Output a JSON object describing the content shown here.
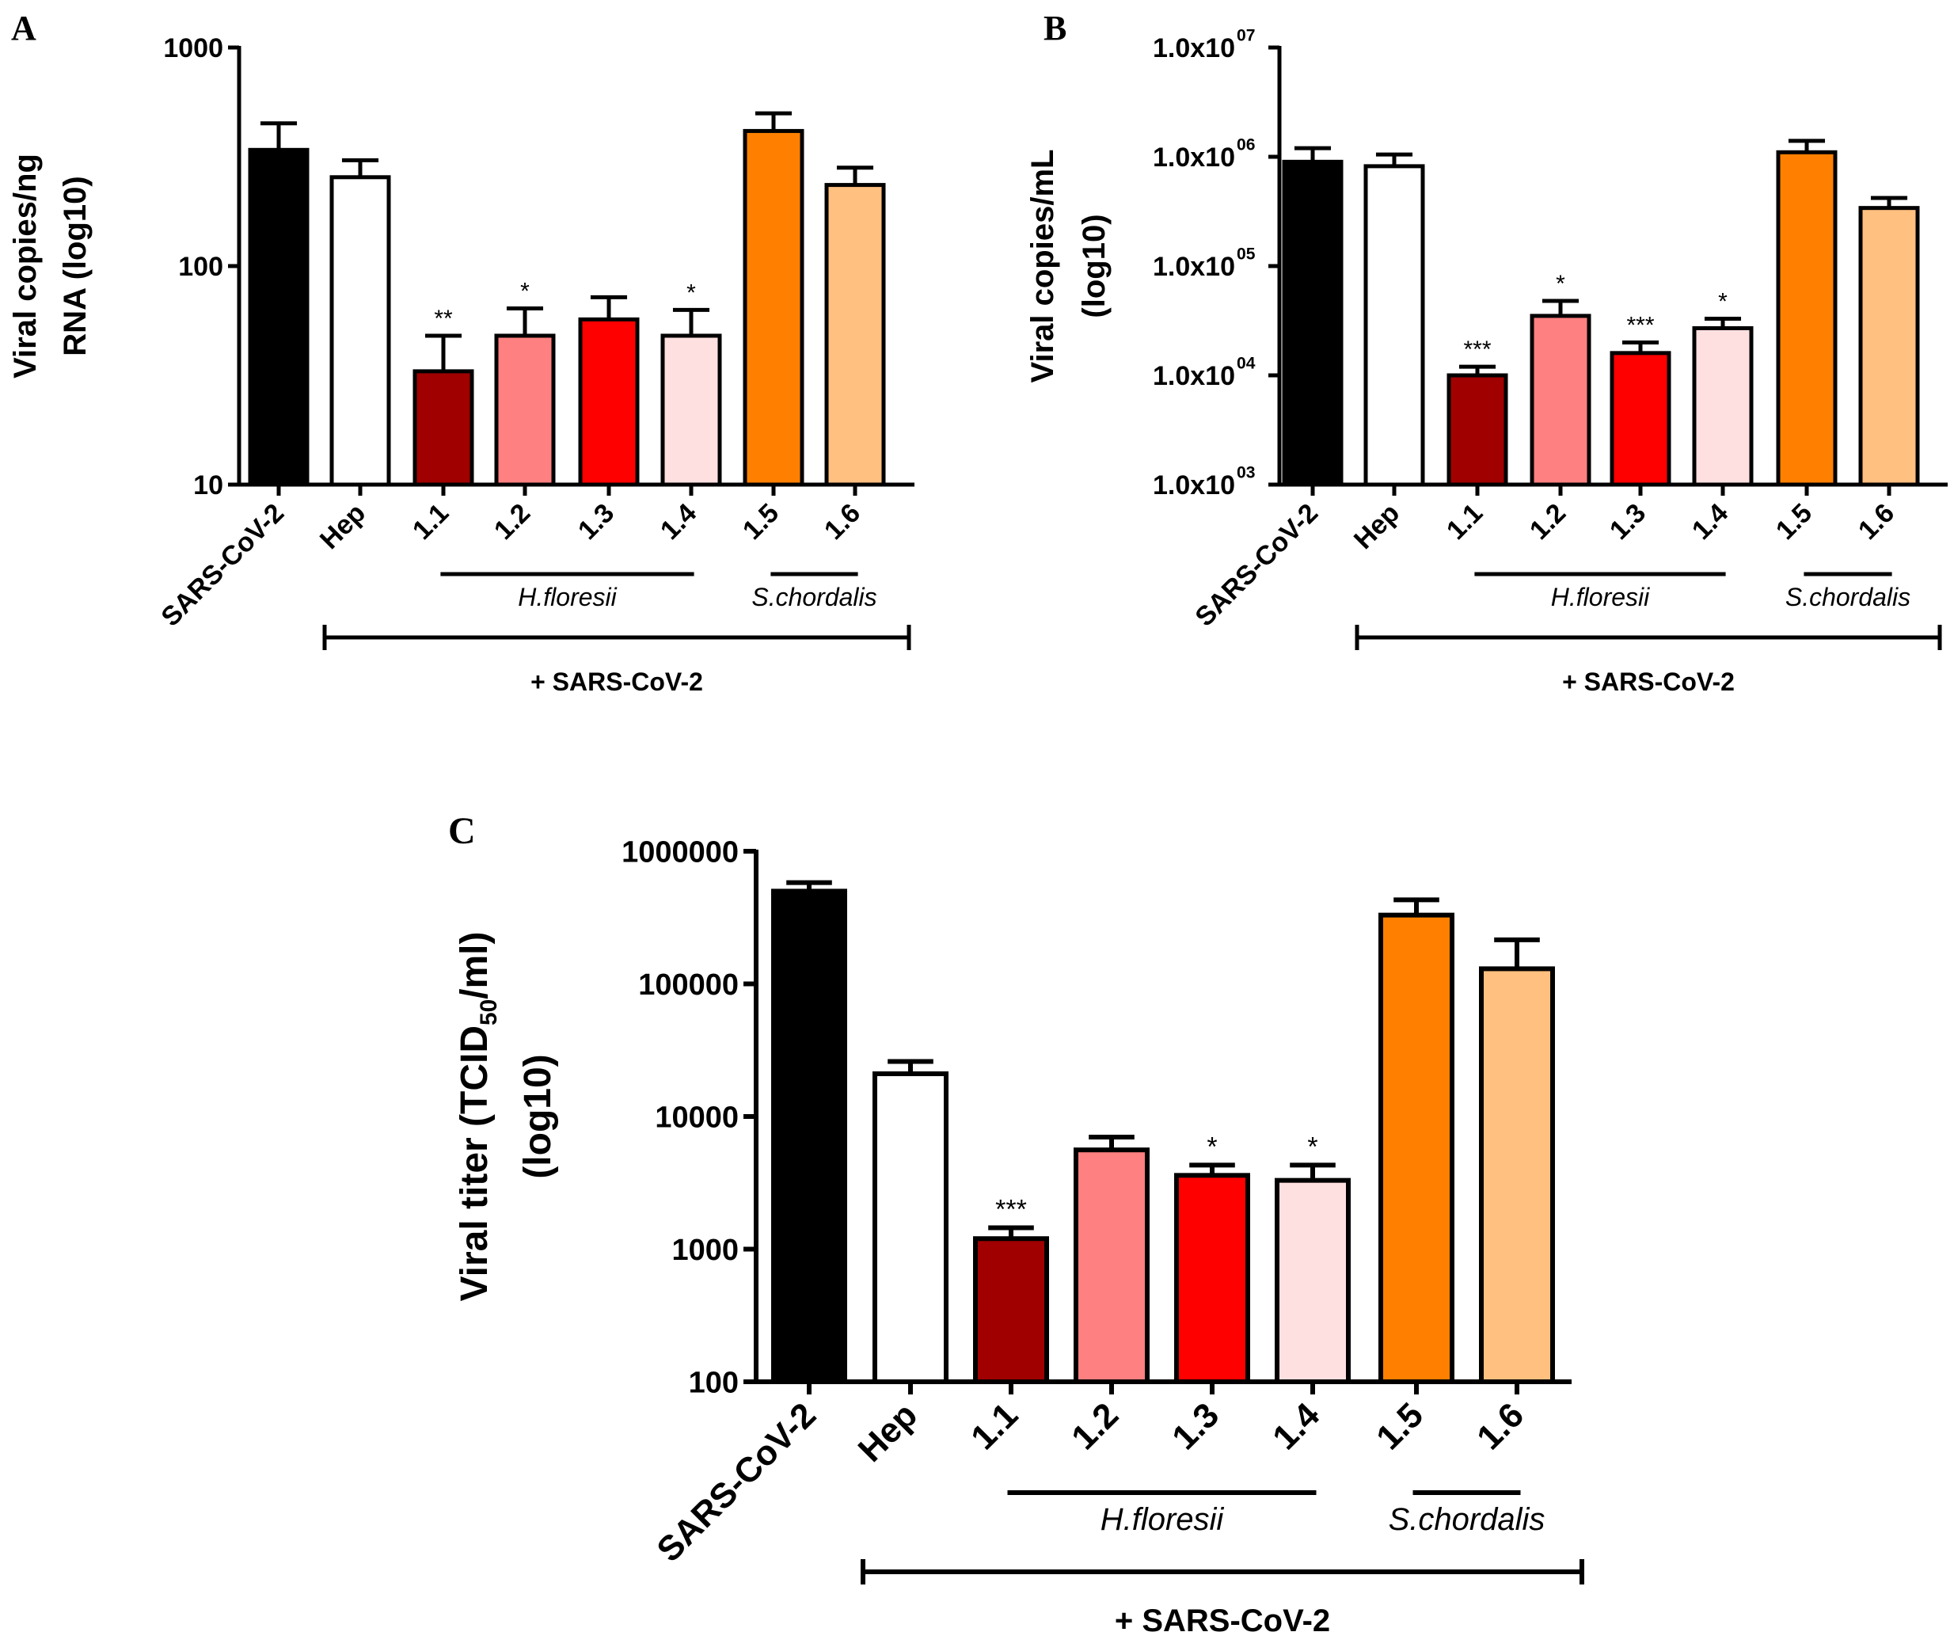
{
  "colors": {
    "SARS-CoV-2": "#000000",
    "Hep": "#ffffff",
    "1.1": "#a00000",
    "1.2": "#ff8080",
    "1.3": "#ff0000",
    "1.4": "#ffe0e0",
    "1.5": "#ff8000",
    "1.6": "#ffc080"
  },
  "chart_data": [
    {
      "panel": "A",
      "type": "bar",
      "scale": "log",
      "ylabel_lines": [
        "Viral copies/ng",
        "RNA (log10)"
      ],
      "yticks": [
        10,
        100,
        1000
      ],
      "ytick_labels": [
        "10",
        "100",
        "1000"
      ],
      "ylim": [
        10,
        1000
      ],
      "categories": [
        "SARS-CoV-2",
        "Hep",
        "1.1",
        "1.2",
        "1.3",
        "1.4",
        "1.5",
        "1.6"
      ],
      "values": [
        340,
        255,
        33,
        48,
        57,
        48,
        415,
        235
      ],
      "errors": [
        450,
        305,
        48,
        64,
        72,
        63,
        500,
        282
      ],
      "significance": [
        "",
        "",
        "**",
        "*",
        "",
        "*",
        "",
        ""
      ],
      "groups": [
        {
          "label": "H.floresii",
          "from": "1.1",
          "to": "1.4"
        },
        {
          "label": "S.chordalis",
          "from": "1.5",
          "to": "1.6"
        }
      ],
      "bracket_label": "+ SARS-CoV-2"
    },
    {
      "panel": "B",
      "type": "bar",
      "scale": "log",
      "ylabel_lines": [
        "Viral copies/mL",
        "(log10)"
      ],
      "yticks": [
        1000,
        10000,
        100000,
        1000000,
        10000000
      ],
      "ytick_labels": [
        {
          "base": "1.0x10",
          "exp": "03"
        },
        {
          "base": "1.0x10",
          "exp": "04"
        },
        {
          "base": "1.0x10",
          "exp": "05"
        },
        {
          "base": "1.0x10",
          "exp": "06"
        },
        {
          "base": "1.0x10",
          "exp": "07"
        }
      ],
      "ylim": [
        1000,
        10000000
      ],
      "categories": [
        "SARS-CoV-2",
        "Hep",
        "1.1",
        "1.2",
        "1.3",
        "1.4",
        "1.5",
        "1.6"
      ],
      "values": [
        900000,
        820000,
        10000,
        35000,
        16000,
        27000,
        1100000,
        340000
      ],
      "errors": [
        1200000,
        1050000,
        12000,
        48000,
        20000,
        33000,
        1400000,
        420000
      ],
      "significance": [
        "",
        "",
        "***",
        "*",
        "***",
        "*",
        "",
        ""
      ],
      "groups": [
        {
          "label": "H.floresii",
          "from": "1.1",
          "to": "1.4"
        },
        {
          "label": "S.chordalis",
          "from": "1.5",
          "to": "1.6"
        }
      ],
      "bracket_label": "+ SARS-CoV-2"
    },
    {
      "panel": "C",
      "type": "bar",
      "scale": "log",
      "ylabel_lines": [
        {
          "pre": "Viral titer (TCID",
          "sub": "50",
          "post": "/ml)"
        },
        {
          "pre": "(log10)",
          "sub": "",
          "post": ""
        }
      ],
      "yticks": [
        100,
        1000,
        10000,
        100000,
        1000000
      ],
      "ytick_labels": [
        "100",
        "1000",
        "10000",
        "100000",
        "1000000"
      ],
      "ylim": [
        100,
        1000000
      ],
      "categories": [
        "SARS-CoV-2",
        "Hep",
        "1.1",
        "1.2",
        "1.3",
        "1.4",
        "1.5",
        "1.6"
      ],
      "values": [
        500000,
        21000,
        1200,
        5600,
        3600,
        3300,
        330000,
        130000
      ],
      "errors": [
        580000,
        26000,
        1450,
        7000,
        4300,
        4300,
        430000,
        215000
      ],
      "significance": [
        "",
        "",
        "***",
        "",
        "*",
        "*",
        "",
        ""
      ],
      "groups": [
        {
          "label": "H.floresii",
          "from": "1.1",
          "to": "1.4"
        },
        {
          "label": "S.chordalis",
          "from": "1.5",
          "to": "1.6"
        }
      ],
      "bracket_label": "+ SARS-CoV-2"
    }
  ]
}
